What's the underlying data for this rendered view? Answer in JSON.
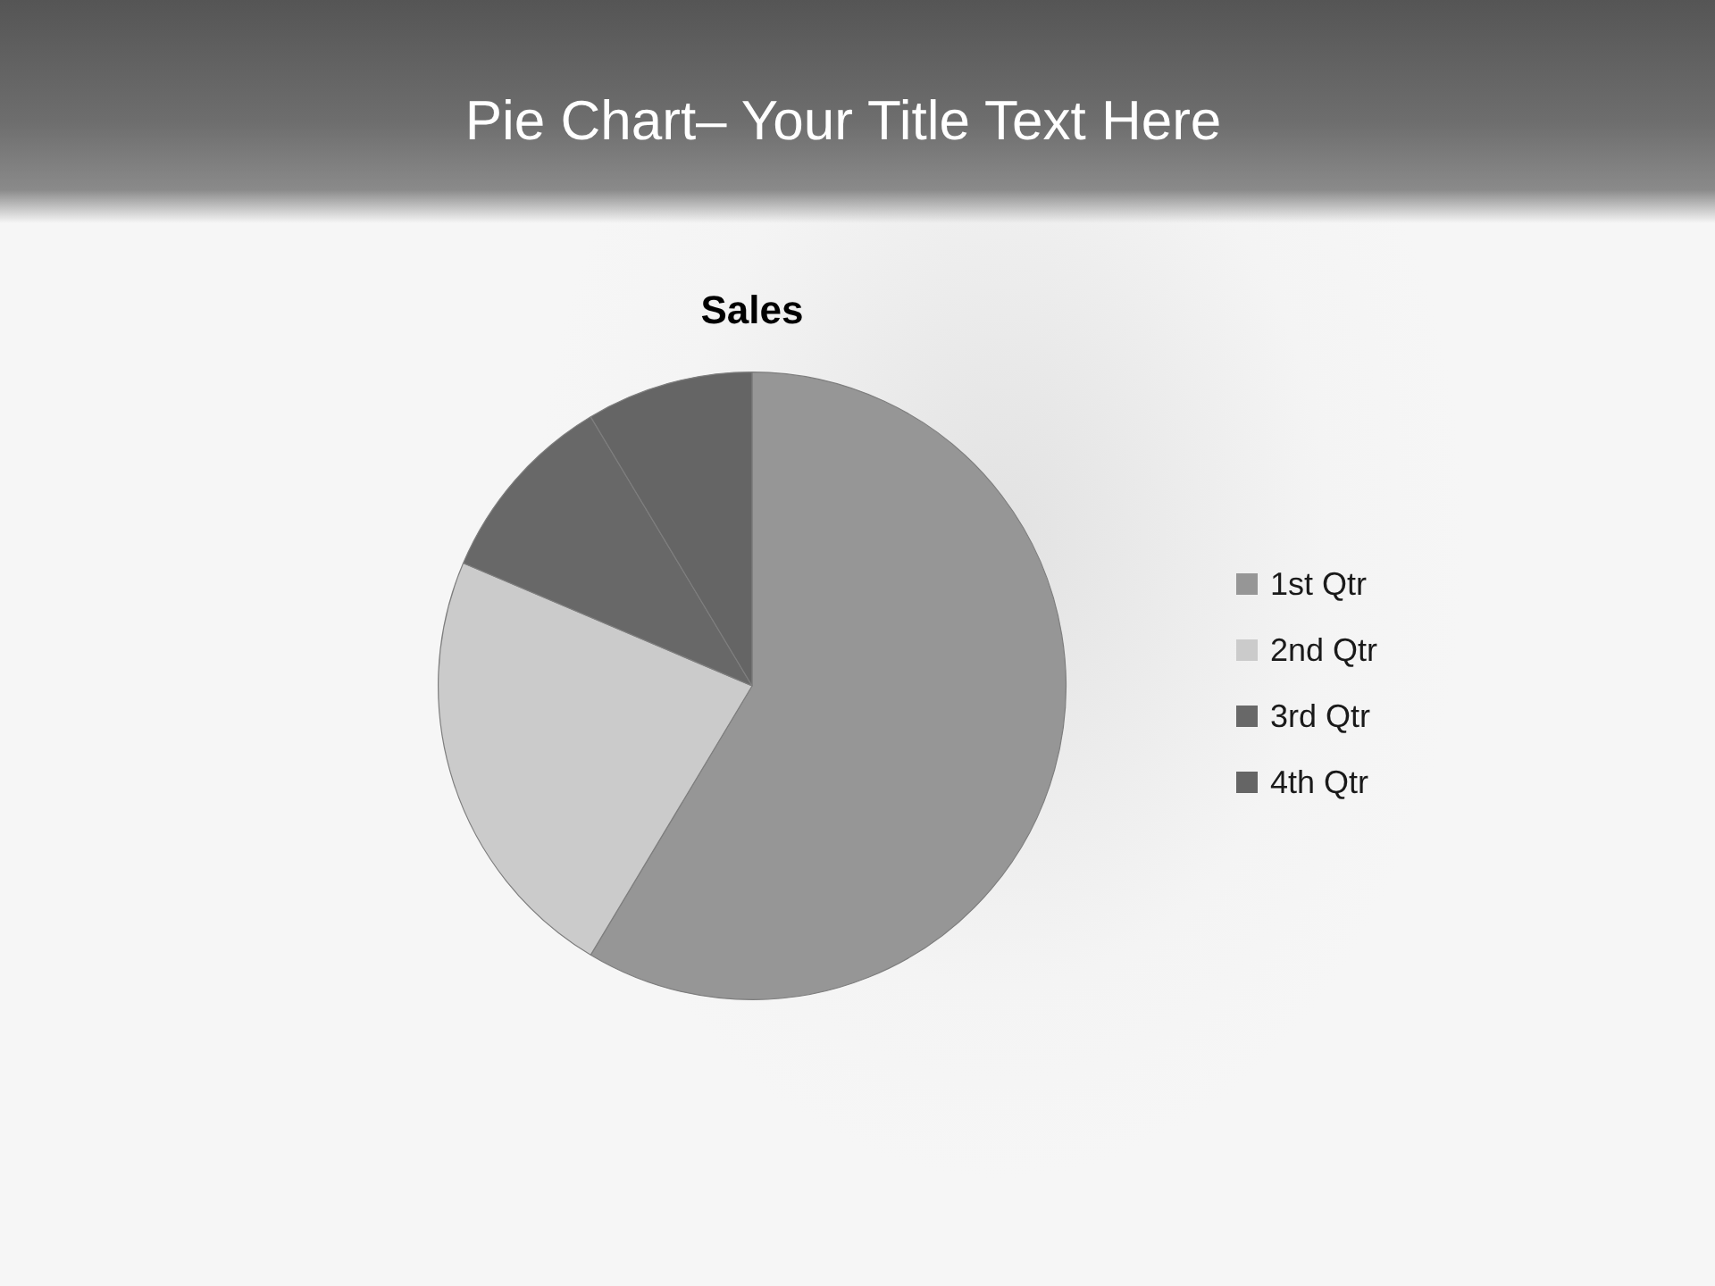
{
  "chart_data": {
    "type": "pie",
    "title": "Pie Chart– Your Title Text Here",
    "subtitle": "Sales",
    "categories": [
      "1st Qtr",
      "2nd Qtr",
      "3rd Qtr",
      "4th Qtr"
    ],
    "values": [
      58.6,
      22.8,
      10,
      8.6
    ],
    "colors": [
      "#969696",
      "#cbcbcb",
      "#686868",
      "#656565"
    ],
    "legend": "right"
  }
}
